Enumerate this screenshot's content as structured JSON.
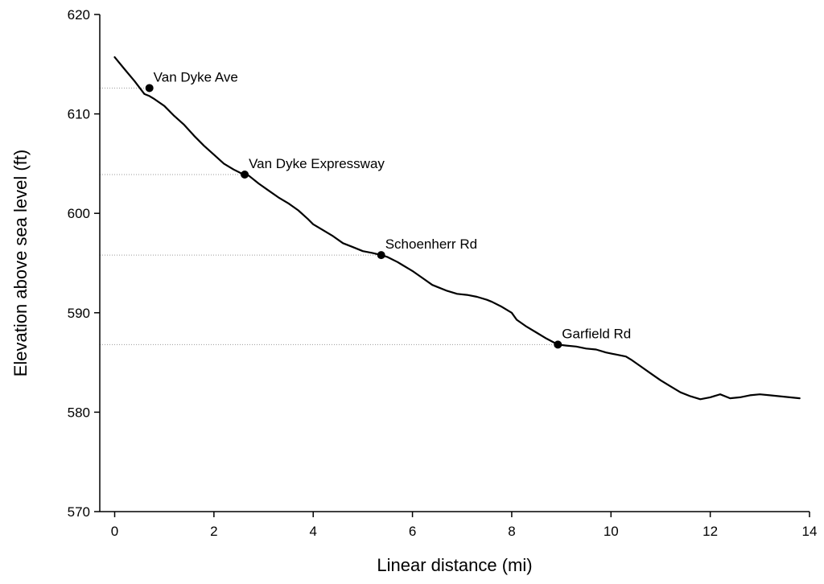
{
  "chart_data": {
    "type": "line",
    "title": "",
    "xlabel": "Linear distance (mi)",
    "ylabel": "Elevation above sea level (ft)",
    "xlim": [
      -0.3,
      14
    ],
    "ylim": [
      570,
      620
    ],
    "xticks": [
      0,
      2,
      4,
      6,
      8,
      10,
      12,
      14
    ],
    "yticks": [
      570,
      580,
      590,
      600,
      610,
      620
    ],
    "grid": false,
    "legend": "none",
    "line_color": "#000000",
    "reference_line_color": "#9a9a9a",
    "series": [
      {
        "x": [
          0.0,
          0.2,
          0.4,
          0.6,
          0.7,
          0.8,
          1.0,
          1.2,
          1.4,
          1.6,
          1.8,
          2.0,
          2.2,
          2.4,
          2.6,
          2.7,
          2.9,
          3.1,
          3.3,
          3.5,
          3.7,
          3.9,
          4.0,
          4.2,
          4.4,
          4.6,
          4.8,
          5.0,
          5.2,
          5.37,
          5.5,
          5.7,
          5.8,
          6.0,
          6.2,
          6.4,
          6.5,
          6.7,
          6.9,
          7.1,
          7.3,
          7.5,
          7.6,
          7.8,
          8.0,
          8.1,
          8.3,
          8.5,
          8.7,
          8.93,
          9.1,
          9.3,
          9.5,
          9.7,
          9.9,
          10.1,
          10.3,
          10.4,
          10.6,
          10.8,
          11.0,
          11.2,
          11.4,
          11.6,
          11.8,
          12.0,
          12.2,
          12.4,
          12.6,
          12.8,
          13.0,
          13.2,
          13.4,
          13.6,
          13.8
        ],
        "y": [
          615.7,
          614.5,
          613.3,
          612.0,
          611.8,
          611.5,
          610.8,
          609.8,
          608.9,
          607.8,
          606.8,
          605.9,
          605.0,
          604.4,
          603.9,
          603.8,
          603.0,
          602.3,
          601.6,
          601.0,
          600.3,
          599.4,
          598.9,
          598.3,
          597.7,
          597.0,
          596.6,
          596.2,
          596.0,
          595.8,
          595.6,
          595.1,
          594.8,
          594.2,
          593.5,
          592.8,
          592.6,
          592.2,
          591.9,
          591.8,
          591.6,
          591.3,
          591.1,
          590.6,
          590.0,
          589.3,
          588.6,
          588.0,
          587.4,
          586.8,
          586.7,
          586.6,
          586.4,
          586.3,
          586.0,
          585.8,
          585.6,
          585.3,
          584.6,
          583.9,
          583.2,
          582.6,
          582.0,
          581.6,
          581.3,
          581.5,
          581.8,
          581.4,
          581.5,
          581.7,
          581.8,
          581.7,
          581.6,
          581.5,
          581.4
        ]
      }
    ],
    "annotations": [
      {
        "label": "Van Dyke Ave",
        "x": 0.7,
        "y": 612.6
      },
      {
        "label": "Van Dyke Expressway",
        "x": 2.62,
        "y": 603.9
      },
      {
        "label": "Schoenherr Rd",
        "x": 5.37,
        "y": 595.8
      },
      {
        "label": "Garfield Rd",
        "x": 8.93,
        "y": 586.8
      }
    ]
  }
}
